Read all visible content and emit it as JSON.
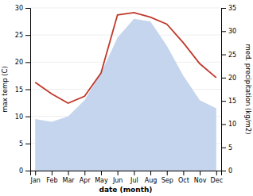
{
  "chart_data": {
    "type": "area",
    "categories": [
      "Jan",
      "Feb",
      "Mar",
      "Apr",
      "May",
      "Jun",
      "Jul",
      "Aug",
      "Sep",
      "Oct",
      "Nov",
      "Dec"
    ],
    "series": [
      {
        "type": "area",
        "color": "#c5d5ee",
        "values": [
          9.5,
          9.0,
          10.0,
          13.0,
          18.0,
          24.5,
          28.0,
          27.5,
          23.0,
          17.5,
          13.0,
          11.5
        ]
      },
      {
        "type": "line",
        "axis": "y2",
        "color": "#c0392b",
        "values": [
          19.0,
          16.5,
          14.5,
          16.0,
          21.0,
          33.5,
          34.0,
          33.0,
          31.5,
          27.5,
          23.0,
          20.0
        ]
      }
    ],
    "xlabel": "date (month)",
    "ylabel": "max temp (C)",
    "y2label": "med. precipitation (kg/m2)",
    "ylim": [
      0,
      30
    ],
    "yticks": [
      0,
      5,
      10,
      15,
      20,
      25,
      30
    ],
    "y2lim": [
      0,
      35
    ],
    "y2ticks": [
      0,
      5,
      10,
      15,
      20,
      25,
      30,
      35
    ],
    "grid": true
  }
}
